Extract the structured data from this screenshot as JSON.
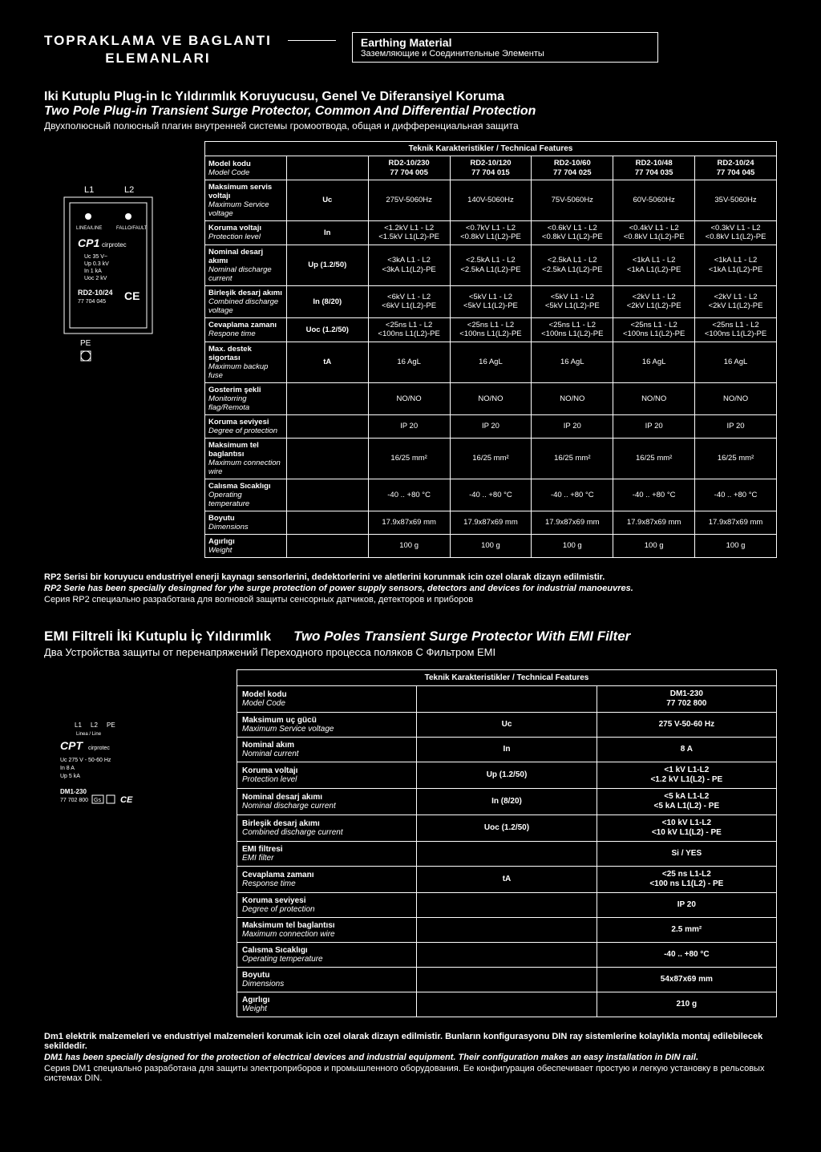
{
  "header": {
    "title_tr_l1": "TOPRAKLAMA VE BAGLANTI",
    "title_tr_l2": "ELEMANLARI",
    "box_en": "Earthing Material",
    "box_ru": "Заземляющие и Соединительные Элементы"
  },
  "sec1": {
    "sub_tr": "Iki Kutuplu Plug-in Ic Yıldırımlık Koruyucusu, Genel Ve Diferansiyel Koruma",
    "sub_en": "Two Pole Plug-in Transient Surge Protector, Common And Differential Protection",
    "sub_ru": "Двухполюсный полюсный плагин внутренней системы громоотвода, общая и дифференциальная защита",
    "table_title": "Teknik Karakteristikler / Technical Features",
    "head_lbl_tr": "Model kodu",
    "head_lbl_en": "Model Code",
    "models": [
      {
        "m": "RD2-10/230",
        "c": "77 704 005"
      },
      {
        "m": "RD2-10/120",
        "c": "77 704 015"
      },
      {
        "m": "RD2-10/60",
        "c": "77 704 025"
      },
      {
        "m": "RD2-10/48",
        "c": "77 704 035"
      },
      {
        "m": "RD2-10/24",
        "c": "77 704 045"
      }
    ],
    "rows": [
      {
        "tr": "Maksimum servis voltajı",
        "en": "Maximum Service voltage",
        "sym": "Uc",
        "v": [
          "275V-5060Hz",
          "140V-5060Hz",
          "75V-5060Hz",
          "60V-5060Hz",
          "35V-5060Hz"
        ]
      },
      {
        "tr": "Koruma voltajı",
        "en": "Protection level",
        "sym": "In",
        "v2": [
          [
            "<1.2kV  L1 - L2",
            "<1.5kV L1(L2)-PE"
          ],
          [
            "<0.7kV  L1 - L2",
            "<0.8kV L1(L2)-PE"
          ],
          [
            "<0.6kV  L1 - L2",
            "<0.8kV L1(L2)-PE"
          ],
          [
            "<0.4kV  L1 - L2",
            "<0.8kV L1(L2)-PE"
          ],
          [
            "<0.3kV  L1 - L2",
            "<0.8kV L1(L2)-PE"
          ]
        ]
      },
      {
        "tr": "Nominal desarj akımı",
        "en": "Nominal discharge current",
        "sym": "Up (1.2/50)",
        "v2": [
          [
            "<3kA   L1 - L2",
            "<3kA L1(L2)-PE"
          ],
          [
            "<2.5kA  L1 - L2",
            "<2.5kA L1(L2)-PE"
          ],
          [
            "<2.5kA  L1 - L2",
            "<2.5kA L1(L2)-PE"
          ],
          [
            "<1kA   L1 - L2",
            "<1kA L1(L2)-PE"
          ],
          [
            "<1kA   L1 - L2",
            "<1kA L1(L2)-PE"
          ]
        ]
      },
      {
        "tr": "Birleşik desarj akımı",
        "en": "Combined discharge voltage",
        "sym": "In (8/20)",
        "v2": [
          [
            "<6kV   L1 - L2",
            "<6kV L1(L2)-PE"
          ],
          [
            "<5kV   L1 - L2",
            "<5kV L1(L2)-PE"
          ],
          [
            "<5kV   L1 - L2",
            "<5kV L1(L2)-PE"
          ],
          [
            "<2kV   L1 - L2",
            "<2kV L1(L2)-PE"
          ],
          [
            "<2kV   L1 - L2",
            "<2kV L1(L2)-PE"
          ]
        ]
      },
      {
        "tr": "Cevaplama zamanı",
        "en": "Respone time",
        "sym": "Uoc (1.2/50)",
        "v2": [
          [
            "<25ns   L1 - L2",
            "<100ns L1(L2)-PE"
          ],
          [
            "<25ns   L1 - L2",
            "<100ns L1(L2)-PE"
          ],
          [
            "<25ns   L1 - L2",
            "<100ns L1(L2)-PE"
          ],
          [
            "<25ns   L1 - L2",
            "<100ns L1(L2)-PE"
          ],
          [
            "<25ns   L1 - L2",
            "<100ns L1(L2)-PE"
          ]
        ]
      },
      {
        "tr": "Max. destek sigortası",
        "en": "Maximum backup fuse",
        "sym": "tA",
        "v": [
          "16 AgL",
          "16 AgL",
          "16 AgL",
          "16 AgL",
          "16 AgL"
        ]
      },
      {
        "tr": "Gosterim şekli",
        "en": "Monitorring flag/Remota",
        "sym": "",
        "v": [
          "NO/NO",
          "NO/NO",
          "NO/NO",
          "NO/NO",
          "NO/NO"
        ]
      },
      {
        "tr": "Koruma seviyesi",
        "en": "Degree of protection",
        "sym": "",
        "v": [
          "IP 20",
          "IP 20",
          "IP 20",
          "IP 20",
          "IP 20"
        ]
      },
      {
        "tr": "Maksimum tel baglantısı",
        "en": "Maximum connection wire",
        "sym": "",
        "v": [
          "16/25 mm²",
          "16/25 mm²",
          "16/25 mm²",
          "16/25 mm²",
          "16/25 mm²"
        ]
      },
      {
        "tr": "Calısma Sıcaklıgı",
        "en": "Operating temperature",
        "sym": "",
        "v": [
          "-40 .. +80 °C",
          "-40 .. +80 °C",
          "-40 .. +80 °C",
          "-40 .. +80 °C",
          "-40 .. +80 °C"
        ]
      },
      {
        "tr": "Boyutu",
        "en": "Dimensions",
        "sym": "",
        "v": [
          "17.9x87x69 mm",
          "17.9x87x69 mm",
          "17.9x87x69 mm",
          "17.9x87x69 mm",
          "17.9x87x69 mm"
        ]
      },
      {
        "tr": "Agırlıgı",
        "en": "Weight",
        "sym": "",
        "v": [
          "100 g",
          "100 g",
          "100 g",
          "100 g",
          "100 g"
        ]
      }
    ],
    "note_tr": "RP2 Serisi bir koruyucu endustriyel enerji kaynagı sensorlerini, dedektorlerini ve aletlerini korunmak icin ozel olarak dizayn edilmistir.",
    "note_en": "RP2 Serie has been specially desingned for yhe surge protection of power supply sensors, detectors and devices for industrial manoeuvres.",
    "note_ru": "Серия RP2 специально разработана для волновой защиты сенсорных датчиков, детекторов и приборов"
  },
  "sec2": {
    "title_tr": "EMI Filtreli İki Kutuplu İç Yıldırımlık",
    "title_en": "Two Poles Transient Surge Protector With EMI Filter",
    "title_ru": "Два Устройства защиты от перенапряжений Переходного процесса поляков С Фильтром EMI",
    "table_title": "Teknik Karakteristikler / Technical Features",
    "head_lbl_tr": "Model kodu",
    "head_lbl_en": "Model Code",
    "model": "DM1-230",
    "code": "77 702 800",
    "rows": [
      {
        "tr": "Maksimum uç gücü",
        "en": "Maximum Service voltage",
        "sym": "Uc",
        "val": "275 V-50-60 Hz"
      },
      {
        "tr": "Nominal akım",
        "en": "Nominal current",
        "sym": "In",
        "val": "8 A"
      },
      {
        "tr": "Koruma voltajı",
        "en": "Protection level",
        "sym": "Up (1.2/50)",
        "val2": [
          "<1 kV        L1-L2",
          "<1.2 kV L1(L2) - PE"
        ]
      },
      {
        "tr": "Nominal desarj akımı",
        "en": "Nominal discharge current",
        "sym": "In (8/20)",
        "val2": [
          "<5 kA        L1-L2",
          "<5 kA  L1(L2) - PE"
        ]
      },
      {
        "tr": "Birleşik desarj akımı",
        "en": "Combined discharge current",
        "sym": "Uoc (1.2/50)",
        "val2": [
          "<10 kV       L1-L2",
          "<10 kV L1(L2) - PE"
        ]
      },
      {
        "tr": "EMI filtresi",
        "en": "EMI filter",
        "sym": "",
        "val": "Si / YES"
      },
      {
        "tr": "Cevaplama zamanı",
        "en": "Response time",
        "sym": "tA",
        "val2": [
          "<25 ns       L1-L2",
          "<100 ns  L1(L2) - PE"
        ]
      },
      {
        "tr": "Koruma seviyesi",
        "en": "Degree of protection",
        "sym": "",
        "val": "IP 20"
      },
      {
        "tr": "Maksimum tel baglantısı",
        "en": "Maximum connection wire",
        "sym": "",
        "val": "2.5 mm²"
      },
      {
        "tr": "Calısma Sıcaklıgı",
        "en": "Operating temperature",
        "sym": "",
        "val": "-40 .. +80 °C"
      },
      {
        "tr": "Boyutu",
        "en": "Dimensions",
        "sym": "",
        "val": "54x87x69 mm"
      },
      {
        "tr": "Agırlıgı",
        "en": "Weight",
        "sym": "",
        "val": "210 g"
      }
    ],
    "note_tr": "Dm1 elektrik malzemeleri ve endustriyel malzemeleri korumak icin ozel olarak dizayn edilmistir. Bunların konfigurasyonu DIN ray sistemlerine kolaylıkla montaj edilebilecek sekildedir.",
    "note_en": "DM1 has been specially designed for the protection of electrical devices and industrial equipment. Their configuration makes an easy installation in DIN rail.",
    "note_ru": "Серия DM1 специально разработана для защиты электроприборов и промышленного оборудования. Ее конфигурация обеспечивает простую и легкую установку в рельсовых системах DIN."
  },
  "diag1": {
    "L1": "L1",
    "L2": "L2",
    "line_line": "LINEA/LINE",
    "fault": "FALLO/FAULT",
    "brand": "CP1",
    "brand2": "cirprotec",
    "p1": "Uc     35 V~",
    "p2": "Up    0.3 kV",
    "p3": "In      1 kA",
    "p4": "Uoc    2 kV",
    "model": "RD2-10/24",
    "code": "77 704 045",
    "ce": "CE",
    "pe": "PE"
  },
  "diag2": {
    "l1": "L1",
    "l2": "L2",
    "pe": "PE",
    "ll": "Linea / Line",
    "brand": "CPT",
    "brand2": "cirprotec",
    "p1": "Uc  275 V - 50-60 Hz",
    "p2": "In            8 A",
    "p3": "Up           5 kA",
    "model": "DM1-230",
    "code": "77 702 800",
    "gs": "Gs",
    "ce": "CE"
  }
}
